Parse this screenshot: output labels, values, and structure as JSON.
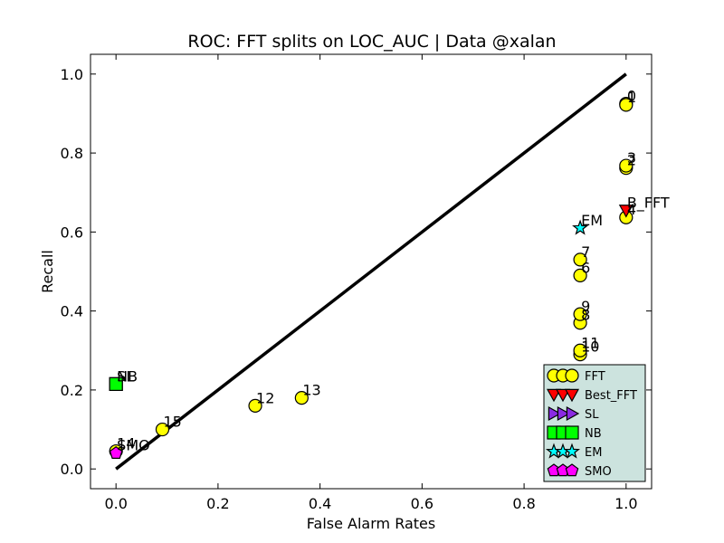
{
  "chart_data": {
    "type": "scatter",
    "title": "ROC: FFT splits on LOC_AUC  |  Data @xalan",
    "xlabel": "False Alarm Rates",
    "ylabel": "Recall",
    "xlim": [
      -0.05,
      1.05
    ],
    "ylim": [
      -0.05,
      1.05
    ],
    "xticks": [
      "0.0",
      "0.2",
      "0.4",
      "0.6",
      "0.8",
      "1.0"
    ],
    "yticks": [
      "0.0",
      "0.2",
      "0.4",
      "0.6",
      "0.8",
      "1.0"
    ],
    "grid": false,
    "legend_position": "lower-right",
    "diagonal": {
      "x": [
        0,
        1
      ],
      "y": [
        0,
        1
      ],
      "color": "#000000"
    },
    "series": [
      {
        "name": "FFT",
        "marker": "circle",
        "color": "#ffff00",
        "points": [
          {
            "x": 1.0,
            "y": 0.925,
            "label": "0"
          },
          {
            "x": 1.0,
            "y": 0.922,
            "label": "1"
          },
          {
            "x": 1.0,
            "y": 0.762,
            "label": "2"
          },
          {
            "x": 1.0,
            "y": 0.768,
            "label": "3"
          },
          {
            "x": 1.0,
            "y": 0.637,
            "label": "4"
          },
          {
            "x": 0.91,
            "y": 0.49,
            "label": "6"
          },
          {
            "x": 0.91,
            "y": 0.53,
            "label": "7"
          },
          {
            "x": 0.91,
            "y": 0.37,
            "label": "8"
          },
          {
            "x": 0.91,
            "y": 0.392,
            "label": "9"
          },
          {
            "x": 0.91,
            "y": 0.29,
            "label": "10"
          },
          {
            "x": 0.91,
            "y": 0.3,
            "label": "11"
          },
          {
            "x": 0.273,
            "y": 0.16,
            "label": "12"
          },
          {
            "x": 0.364,
            "y": 0.18,
            "label": "13"
          },
          {
            "x": 0.0,
            "y": 0.045,
            "label": "14"
          },
          {
            "x": 0.091,
            "y": 0.1,
            "label": "15"
          }
        ]
      },
      {
        "name": "Best_FFT",
        "marker": "triangle-down",
        "color": "#ff0000",
        "points": [
          {
            "x": 1.0,
            "y": 0.655,
            "label": "B_FFT"
          }
        ]
      },
      {
        "name": "SL",
        "marker": "triangle-right",
        "color": "#8a2be2",
        "points": []
      },
      {
        "name": "NB",
        "marker": "square",
        "color": "#00ff00",
        "points": [
          {
            "x": 0.0,
            "y": 0.215,
            "label": "NB"
          },
          {
            "x": 0.0,
            "y": 0.215,
            "label": "SL"
          }
        ]
      },
      {
        "name": "EM",
        "marker": "star",
        "color": "#00ffff",
        "points": [
          {
            "x": 0.91,
            "y": 0.61,
            "label": "EM"
          }
        ]
      },
      {
        "name": "SMO",
        "marker": "pentagon",
        "color": "#ff00ff",
        "points": [
          {
            "x": 0.0,
            "y": 0.04,
            "label": "SMO"
          }
        ]
      }
    ],
    "legend": [
      "FFT",
      "Best_FFT",
      "SL",
      "NB",
      "EM",
      "SMO"
    ],
    "legend_bg": "#cce3de"
  }
}
